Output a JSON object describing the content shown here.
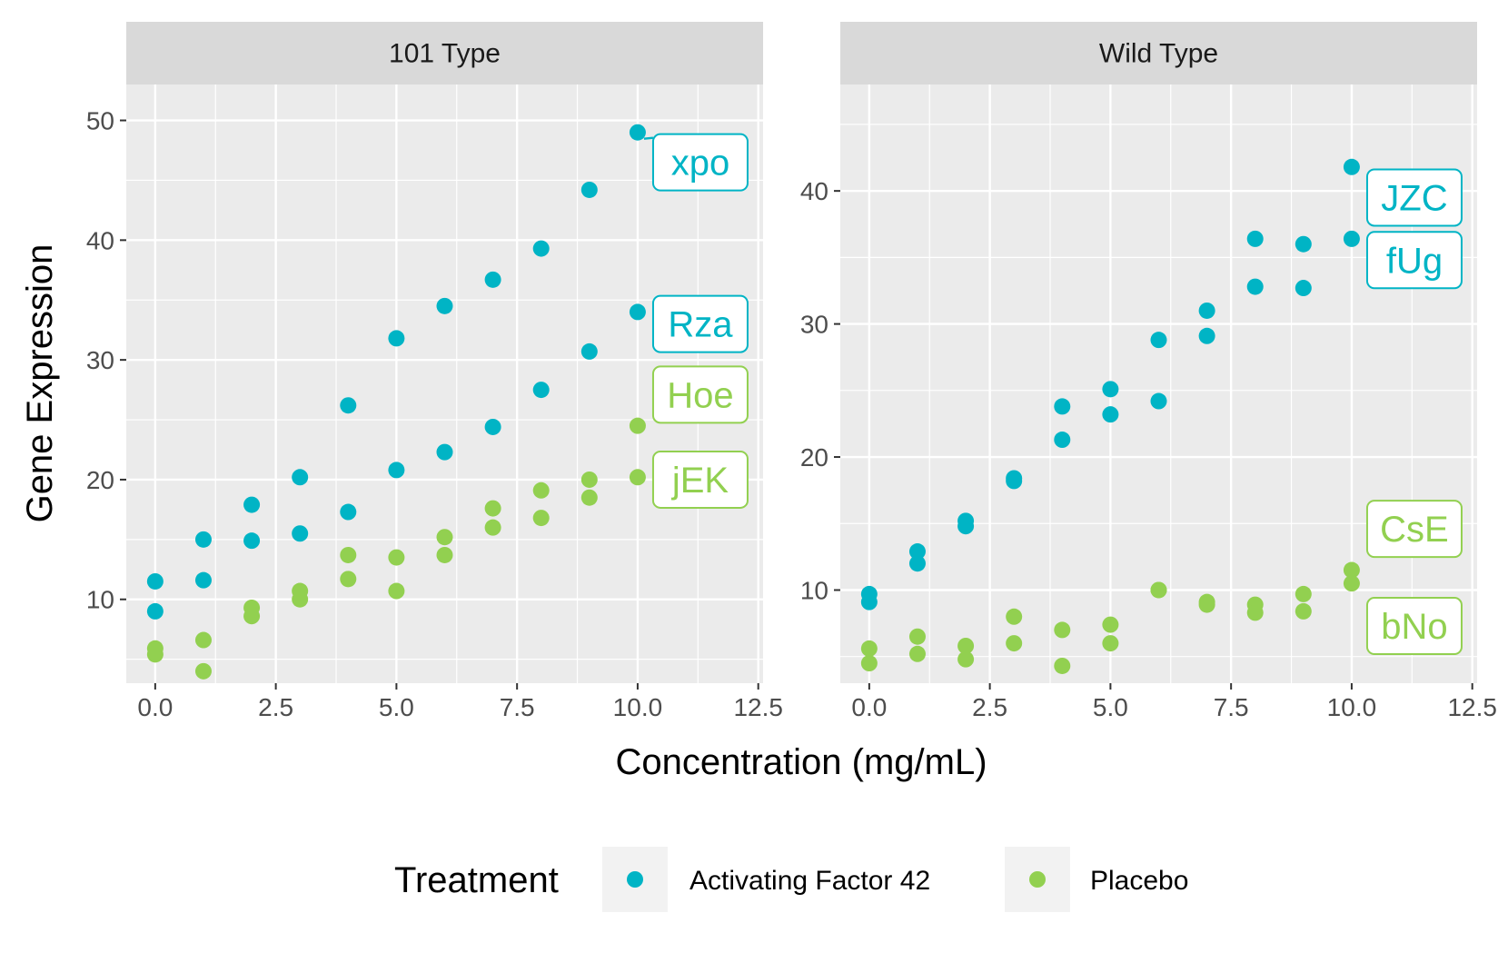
{
  "chart_data": {
    "type": "scatter",
    "xlabel": "Concentration (mg/mL)",
    "ylabel": "Gene Expression",
    "x_ticks": [
      "0.0",
      "2.5",
      "5.0",
      "7.5",
      "10.0",
      "12.5"
    ],
    "xlim": [
      -0.6,
      12.6
    ],
    "grid": true,
    "legend": {
      "title": "Treatment",
      "position": "bottom",
      "entries": [
        {
          "label": "Activating Factor 42",
          "color": "#00B4C5"
        },
        {
          "label": "Placebo",
          "color": "#92D050"
        }
      ]
    },
    "colors": {
      "Activating Factor 42": "#00B4C5",
      "Placebo": "#92D050"
    },
    "panels": [
      {
        "title": "101 Type",
        "ylim": [
          3,
          53
        ],
        "y_ticks": [
          10,
          20,
          30,
          40,
          50
        ],
        "points": [
          {
            "x": 0,
            "y": 11.5,
            "group": "Activating Factor 42"
          },
          {
            "x": 0,
            "y": 9.0,
            "group": "Activating Factor 42"
          },
          {
            "x": 1,
            "y": 15.0,
            "group": "Activating Factor 42"
          },
          {
            "x": 1,
            "y": 11.6,
            "group": "Activating Factor 42"
          },
          {
            "x": 2,
            "y": 17.9,
            "group": "Activating Factor 42"
          },
          {
            "x": 2,
            "y": 14.9,
            "group": "Activating Factor 42"
          },
          {
            "x": 3,
            "y": 20.2,
            "group": "Activating Factor 42"
          },
          {
            "x": 3,
            "y": 15.5,
            "group": "Activating Factor 42"
          },
          {
            "x": 4,
            "y": 26.2,
            "group": "Activating Factor 42"
          },
          {
            "x": 4,
            "y": 17.3,
            "group": "Activating Factor 42"
          },
          {
            "x": 5,
            "y": 31.8,
            "group": "Activating Factor 42"
          },
          {
            "x": 5,
            "y": 20.8,
            "group": "Activating Factor 42"
          },
          {
            "x": 6,
            "y": 34.5,
            "group": "Activating Factor 42"
          },
          {
            "x": 6,
            "y": 22.3,
            "group": "Activating Factor 42"
          },
          {
            "x": 7,
            "y": 36.7,
            "group": "Activating Factor 42"
          },
          {
            "x": 7,
            "y": 24.4,
            "group": "Activating Factor 42"
          },
          {
            "x": 8,
            "y": 39.3,
            "group": "Activating Factor 42"
          },
          {
            "x": 8,
            "y": 27.5,
            "group": "Activating Factor 42"
          },
          {
            "x": 9,
            "y": 44.2,
            "group": "Activating Factor 42"
          },
          {
            "x": 9,
            "y": 30.7,
            "group": "Activating Factor 42"
          },
          {
            "x": 10,
            "y": 49.0,
            "group": "Activating Factor 42"
          },
          {
            "x": 10,
            "y": 34.0,
            "group": "Activating Factor 42"
          },
          {
            "x": 0,
            "y": 5.9,
            "group": "Placebo"
          },
          {
            "x": 0,
            "y": 5.4,
            "group": "Placebo"
          },
          {
            "x": 1,
            "y": 6.6,
            "group": "Placebo"
          },
          {
            "x": 1,
            "y": 4.0,
            "group": "Placebo"
          },
          {
            "x": 2,
            "y": 9.3,
            "group": "Placebo"
          },
          {
            "x": 2,
            "y": 8.6,
            "group": "Placebo"
          },
          {
            "x": 3,
            "y": 10.7,
            "group": "Placebo"
          },
          {
            "x": 3,
            "y": 10.0,
            "group": "Placebo"
          },
          {
            "x": 4,
            "y": 13.7,
            "group": "Placebo"
          },
          {
            "x": 4,
            "y": 11.7,
            "group": "Placebo"
          },
          {
            "x": 5,
            "y": 13.5,
            "group": "Placebo"
          },
          {
            "x": 5,
            "y": 10.7,
            "group": "Placebo"
          },
          {
            "x": 6,
            "y": 15.2,
            "group": "Placebo"
          },
          {
            "x": 6,
            "y": 13.7,
            "group": "Placebo"
          },
          {
            "x": 7,
            "y": 17.6,
            "group": "Placebo"
          },
          {
            "x": 7,
            "y": 16.0,
            "group": "Placebo"
          },
          {
            "x": 8,
            "y": 19.1,
            "group": "Placebo"
          },
          {
            "x": 8,
            "y": 16.8,
            "group": "Placebo"
          },
          {
            "x": 9,
            "y": 20.0,
            "group": "Placebo"
          },
          {
            "x": 9,
            "y": 18.5,
            "group": "Placebo"
          },
          {
            "x": 10,
            "y": 24.5,
            "group": "Placebo"
          },
          {
            "x": 10,
            "y": 20.2,
            "group": "Placebo"
          }
        ],
        "labels": [
          {
            "text": "xpo",
            "x": 11.3,
            "y": 46.5,
            "group": "Activating Factor 42",
            "point": [
              10,
              49.0
            ],
            "leader": true
          },
          {
            "text": "Rza",
            "x": 11.3,
            "y": 33.0,
            "group": "Activating Factor 42"
          },
          {
            "text": "Hoe",
            "x": 11.3,
            "y": 27.1,
            "group": "Placebo"
          },
          {
            "text": "jEK",
            "x": 11.3,
            "y": 20.0,
            "group": "Placebo"
          }
        ]
      },
      {
        "title": "Wild Type",
        "ylim": [
          3,
          48
        ],
        "y_ticks": [
          10,
          20,
          30,
          40
        ],
        "points": [
          {
            "x": 0,
            "y": 9.7,
            "group": "Activating Factor 42"
          },
          {
            "x": 0,
            "y": 9.1,
            "group": "Activating Factor 42"
          },
          {
            "x": 1,
            "y": 12.9,
            "group": "Activating Factor 42"
          },
          {
            "x": 1,
            "y": 12.0,
            "group": "Activating Factor 42"
          },
          {
            "x": 2,
            "y": 15.2,
            "group": "Activating Factor 42"
          },
          {
            "x": 2,
            "y": 14.8,
            "group": "Activating Factor 42"
          },
          {
            "x": 3,
            "y": 18.4,
            "group": "Activating Factor 42"
          },
          {
            "x": 3,
            "y": 18.2,
            "group": "Activating Factor 42"
          },
          {
            "x": 4,
            "y": 23.8,
            "group": "Activating Factor 42"
          },
          {
            "x": 4,
            "y": 21.3,
            "group": "Activating Factor 42"
          },
          {
            "x": 5,
            "y": 25.1,
            "group": "Activating Factor 42"
          },
          {
            "x": 5,
            "y": 23.2,
            "group": "Activating Factor 42"
          },
          {
            "x": 6,
            "y": 28.8,
            "group": "Activating Factor 42"
          },
          {
            "x": 6,
            "y": 24.2,
            "group": "Activating Factor 42"
          },
          {
            "x": 7,
            "y": 31.0,
            "group": "Activating Factor 42"
          },
          {
            "x": 7,
            "y": 29.1,
            "group": "Activating Factor 42"
          },
          {
            "x": 8,
            "y": 36.4,
            "group": "Activating Factor 42"
          },
          {
            "x": 8,
            "y": 32.8,
            "group": "Activating Factor 42"
          },
          {
            "x": 9,
            "y": 36.0,
            "group": "Activating Factor 42"
          },
          {
            "x": 9,
            "y": 32.7,
            "group": "Activating Factor 42"
          },
          {
            "x": 10,
            "y": 41.8,
            "group": "Activating Factor 42"
          },
          {
            "x": 10,
            "y": 36.4,
            "group": "Activating Factor 42"
          },
          {
            "x": 0,
            "y": 5.6,
            "group": "Placebo"
          },
          {
            "x": 0,
            "y": 4.5,
            "group": "Placebo"
          },
          {
            "x": 1,
            "y": 6.5,
            "group": "Placebo"
          },
          {
            "x": 1,
            "y": 5.2,
            "group": "Placebo"
          },
          {
            "x": 2,
            "y": 5.8,
            "group": "Placebo"
          },
          {
            "x": 2,
            "y": 4.8,
            "group": "Placebo"
          },
          {
            "x": 3,
            "y": 8.0,
            "group": "Placebo"
          },
          {
            "x": 3,
            "y": 6.0,
            "group": "Placebo"
          },
          {
            "x": 4,
            "y": 7.0,
            "group": "Placebo"
          },
          {
            "x": 4,
            "y": 4.3,
            "group": "Placebo"
          },
          {
            "x": 5,
            "y": 7.4,
            "group": "Placebo"
          },
          {
            "x": 5,
            "y": 6.0,
            "group": "Placebo"
          },
          {
            "x": 6,
            "y": 10.0,
            "group": "Placebo"
          },
          {
            "x": 6,
            "y": 10.0,
            "group": "Placebo"
          },
          {
            "x": 7,
            "y": 9.1,
            "group": "Placebo"
          },
          {
            "x": 7,
            "y": 8.9,
            "group": "Placebo"
          },
          {
            "x": 8,
            "y": 8.9,
            "group": "Placebo"
          },
          {
            "x": 8,
            "y": 8.3,
            "group": "Placebo"
          },
          {
            "x": 9,
            "y": 9.7,
            "group": "Placebo"
          },
          {
            "x": 9,
            "y": 8.4,
            "group": "Placebo"
          },
          {
            "x": 10,
            "y": 11.5,
            "group": "Placebo"
          },
          {
            "x": 10,
            "y": 10.5,
            "group": "Placebo"
          }
        ],
        "labels": [
          {
            "text": "JZC",
            "x": 11.3,
            "y": 39.5,
            "group": "Activating Factor 42"
          },
          {
            "text": "fUg",
            "x": 11.3,
            "y": 34.8,
            "group": "Activating Factor 42"
          },
          {
            "text": "CsE",
            "x": 11.3,
            "y": 14.6,
            "group": "Placebo"
          },
          {
            "text": "bNo",
            "x": 11.3,
            "y": 7.3,
            "group": "Placebo"
          }
        ]
      }
    ]
  }
}
